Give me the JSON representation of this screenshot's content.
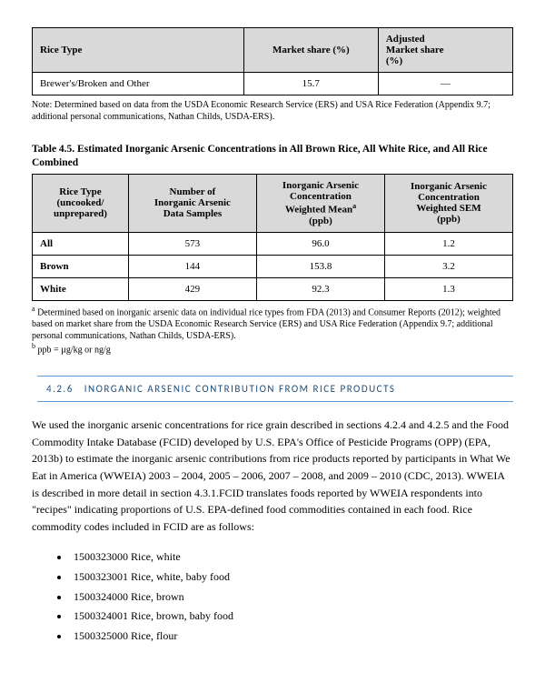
{
  "table1": {
    "headers": {
      "col1": "Rice Type",
      "col2": "Market share (%)",
      "col3_line1": "Adjusted",
      "col3_line2": "Market share",
      "col3_line3": "(%)"
    },
    "row": {
      "type": "Brewer's/Broken and Other",
      "market_share": "15.7",
      "adjusted": "—"
    },
    "note": "Note: Determined based on data from the USDA Economic Research Service (ERS) and USA Rice Federation (Appendix 9.7; additional personal communications, Nathan Childs, USDA-ERS)."
  },
  "table2": {
    "title": "Table 4.5. Estimated Inorganic Arsenic Concentrations in All Brown Rice, All White Rice, and All Rice Combined",
    "headers": {
      "col1_line1": "Rice Type",
      "col1_line2": "(uncooked/",
      "col1_line3": "unprepared)",
      "col2_line1": "Number of",
      "col2_line2": "Inorganic Arsenic",
      "col2_line3": "Data Samples",
      "col3_line1": "Inorganic Arsenic",
      "col3_line2": "Concentration",
      "col3_line3": "Weighted Mean",
      "col3_sup": "a",
      "col3_line4": "(ppb)",
      "col4_line1": "Inorganic Arsenic",
      "col4_line2": "Concentration",
      "col4_line3": "Weighted SEM",
      "col4_line4": "(ppb)"
    },
    "rows": [
      {
        "type": "All",
        "samples": "573",
        "mean": "96.0",
        "sem": "1.2"
      },
      {
        "type": "Brown",
        "samples": "144",
        "mean": "153.8",
        "sem": "3.2"
      },
      {
        "type": "White",
        "samples": "429",
        "mean": "92.3",
        "sem": "1.3"
      }
    ],
    "footnote_a_sup": "a",
    "footnote_a": "   Determined based on inorganic arsenic data on individual rice types from FDA (2013) and Consumer Reports (2012); weighted based on market share from the USDA Economic Research Service (ERS) and USA Rice Federation (Appendix 9.7; additional personal communications, Nathan Childs, USDA-ERS).",
    "footnote_b_sup": "b",
    "footnote_b": "   ppb = µg/kg or ng/g"
  },
  "section": {
    "number": "4.2.6",
    "title": "INORGANIC ARSENIC CONTRIBUTION FROM RICE PRODUCTS"
  },
  "body": "We used the inorganic arsenic concentrations for rice grain described in sections 4.2.4 and 4.2.5 and the Food Commodity Intake Database (FCID) developed by U.S. EPA's Office of Pesticide Programs (OPP) (EPA, 2013b) to estimate the inorganic arsenic contributions from rice products reported by participants in What We Eat in America (WWEIA) 2003 – 2004, 2005 – 2006, 2007 – 2008, and 2009 – 2010 (CDC, 2013). WWEIA is described in more detail in section 4.3.1.FCID translates foods reported by WWEIA respondents into \"recipes\" indicating proportions of U.S. EPA-defined food commodities contained in each food. Rice commodity codes included in FCID are as follows:",
  "codes": [
    "1500323000  Rice, white",
    "1500323001  Rice, white, baby food",
    "1500324000  Rice, brown",
    "1500324001  Rice, brown, baby food",
    "1500325000  Rice, flour"
  ]
}
